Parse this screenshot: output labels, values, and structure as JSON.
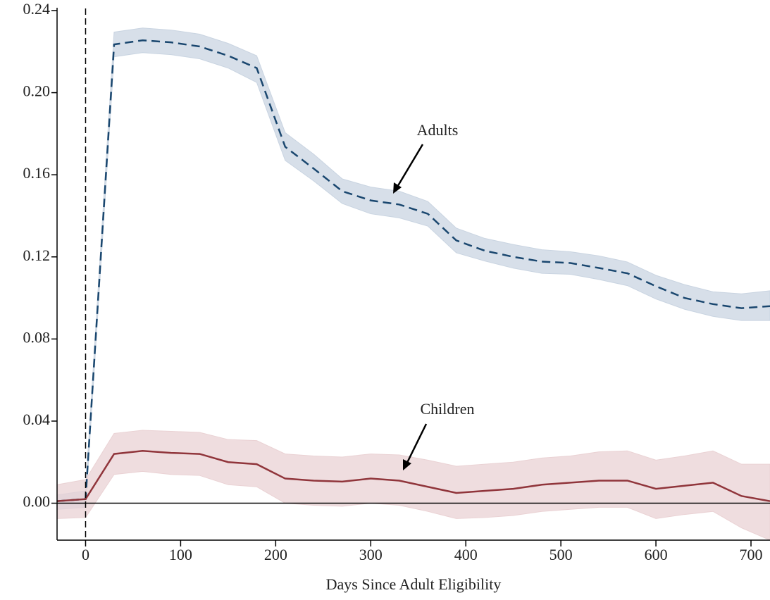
{
  "chart_data": {
    "type": "line",
    "x_label": "Days Since Adult Eligibility",
    "x": [
      -30,
      0,
      30,
      60,
      90,
      120,
      150,
      180,
      210,
      240,
      270,
      300,
      330,
      360,
      390,
      420,
      450,
      480,
      510,
      540,
      570,
      600,
      630,
      660,
      690,
      720
    ],
    "xlim": [
      -30,
      720
    ],
    "xticks": [
      0,
      100,
      200,
      300,
      400,
      500,
      600,
      700
    ],
    "ylim": [
      -0.018,
      0.24
    ],
    "yticks": [
      {
        "value": 0,
        "label": "0.00"
      },
      {
        "value": 0.04,
        "label": "0.04"
      },
      {
        "value": 0.08,
        "label": "0.08"
      },
      {
        "value": 0.12,
        "label": "0.12"
      },
      {
        "value": 0.16,
        "label": "0.16"
      },
      {
        "value": 0.2,
        "label": "0.20"
      },
      {
        "value": 0.24,
        "label": "0.24"
      }
    ],
    "vline": 0,
    "hline": 0,
    "series": [
      {
        "name": "Adults",
        "color": "#1a476f",
        "band_color": "#c9d4e1",
        "dash": true,
        "values": [
          0.001,
          0.002,
          0.2235,
          0.2255,
          0.2245,
          0.2225,
          0.218,
          0.212,
          0.1736,
          0.163,
          0.152,
          0.1475,
          0.1455,
          0.141,
          0.128,
          0.123,
          0.12,
          0.1177,
          0.117,
          0.1146,
          0.112,
          0.1057,
          0.1,
          0.097,
          0.095,
          0.096
        ],
        "ci_low": [
          -0.003,
          -0.002,
          0.2175,
          0.2195,
          0.2185,
          0.2165,
          0.212,
          0.205,
          0.167,
          0.157,
          0.146,
          0.141,
          0.139,
          0.135,
          0.122,
          0.118,
          0.1145,
          0.112,
          0.1115,
          0.109,
          0.106,
          0.0995,
          0.0945,
          0.091,
          0.089,
          0.089
        ],
        "ci_high": [
          0.004,
          0.006,
          0.2295,
          0.2315,
          0.2305,
          0.2285,
          0.224,
          0.218,
          0.1805,
          0.17,
          0.158,
          0.154,
          0.152,
          0.147,
          0.134,
          0.129,
          0.126,
          0.1235,
          0.1225,
          0.1205,
          0.1175,
          0.111,
          0.1065,
          0.103,
          0.102,
          0.1035
        ]
      },
      {
        "name": "Children",
        "color": "#90353b",
        "band_color": "#ead2d4",
        "dash": false,
        "values": [
          0.001,
          0.002,
          0.024,
          0.0255,
          0.0245,
          0.024,
          0.02,
          0.019,
          0.012,
          0.011,
          0.0105,
          0.012,
          0.011,
          0.008,
          0.005,
          0.006,
          0.007,
          0.009,
          0.01,
          0.011,
          0.011,
          0.007,
          0.0085,
          0.01,
          0.0035,
          0.001
        ],
        "ci_low": [
          -0.0075,
          -0.007,
          0.014,
          0.0155,
          0.014,
          0.0135,
          0.009,
          0.008,
          0.0,
          -0.001,
          -0.0015,
          0.0,
          -0.001,
          -0.004,
          -0.0075,
          -0.007,
          -0.006,
          -0.004,
          -0.003,
          -0.002,
          -0.002,
          -0.0075,
          -0.0055,
          -0.004,
          -0.012,
          -0.018
        ],
        "ci_high": [
          0.009,
          0.0115,
          0.034,
          0.0355,
          0.035,
          0.0345,
          0.031,
          0.0305,
          0.024,
          0.023,
          0.0225,
          0.024,
          0.0235,
          0.021,
          0.018,
          0.019,
          0.02,
          0.022,
          0.023,
          0.025,
          0.0255,
          0.021,
          0.023,
          0.0255,
          0.019,
          0.019
        ]
      }
    ]
  }
}
